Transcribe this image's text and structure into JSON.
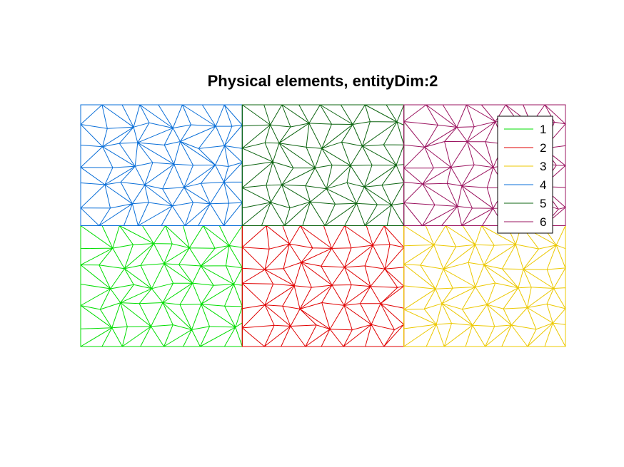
{
  "chart_data": {
    "type": "mesh",
    "title": "Physical elements, entityDim:2",
    "xlabel": "",
    "ylabel": "",
    "xlim": [
      0,
      3
    ],
    "ylim": [
      0,
      2
    ],
    "grid": false,
    "legend_position": "top-right",
    "mesh": {
      "cols": 8,
      "rows": 6
    },
    "regions": [
      {
        "name": "1",
        "color": "#00dd00",
        "x": [
          0,
          1
        ],
        "y": [
          0,
          1
        ]
      },
      {
        "name": "2",
        "color": "#e00000",
        "x": [
          1,
          2
        ],
        "y": [
          0,
          1
        ]
      },
      {
        "name": "3",
        "color": "#ecc800",
        "x": [
          2,
          3
        ],
        "y": [
          0,
          1
        ]
      },
      {
        "name": "4",
        "color": "#0a6fd8",
        "x": [
          0,
          1
        ],
        "y": [
          1,
          2
        ]
      },
      {
        "name": "5",
        "color": "#0c6410",
        "x": [
          1,
          2
        ],
        "y": [
          1,
          2
        ]
      },
      {
        "name": "6",
        "color": "#9b1460",
        "x": [
          2,
          3
        ],
        "y": [
          1,
          2
        ]
      }
    ]
  }
}
